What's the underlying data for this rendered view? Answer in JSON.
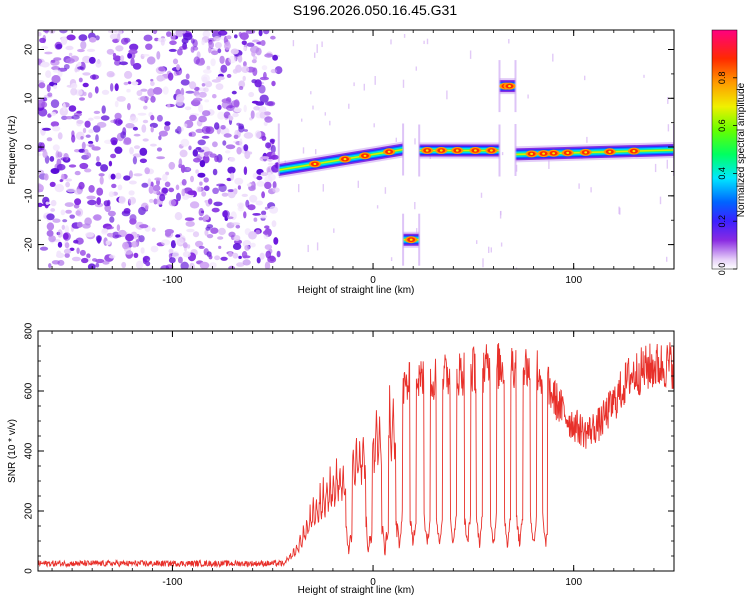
{
  "figure": {
    "title": "S196.2026.050.16.45.G31"
  },
  "chart_data": [
    {
      "type": "heatmap",
      "title": "S196.2026.050.16.45.G31",
      "xlabel": "Height of straight line (km)",
      "ylabel": "Frequency (Hz)",
      "xlim": [
        -167,
        150
      ],
      "ylim": [
        -25,
        24
      ],
      "xticks": [
        -100,
        0,
        100
      ],
      "yticks": [
        -20,
        -10,
        0,
        10,
        20
      ],
      "noise_region_x": [
        -167,
        -47
      ],
      "track": [
        {
          "x": -45,
          "y": -4.7
        },
        {
          "x": -35,
          "y": -3.8
        },
        {
          "x": -25,
          "y": -2.5
        },
        {
          "x": -15,
          "y": -1.6
        },
        {
          "x": -5,
          "y": -1.2
        },
        {
          "x": 5,
          "y": -0.8
        },
        {
          "x": 15,
          "y": -0.5
        }
      ],
      "segments": [
        {
          "x0": -47,
          "x1": 15,
          "y0": -4.7,
          "y1": -0.5,
          "peaks": [
            -29,
            -14,
            -4,
            8
          ]
        },
        {
          "x0": 15,
          "x1": 23,
          "y0": -19,
          "y1": -19,
          "peaks": [
            19
          ]
        },
        {
          "x0": 23,
          "x1": 63,
          "y0": -0.7,
          "y1": -0.7,
          "peaks": [
            27,
            34,
            42,
            51,
            59
          ]
        },
        {
          "x0": 63,
          "x1": 71,
          "y0": 12.5,
          "y1": 12.5,
          "peaks": [
            66,
            68
          ]
        },
        {
          "x0": 71,
          "x1": 150,
          "y0": -1.5,
          "y1": -0.6,
          "peaks": [
            79,
            85,
            90,
            97,
            106,
            118,
            130
          ]
        }
      ],
      "colorbar": {
        "label": "Normalized spectral amplitude",
        "range": [
          0,
          1
        ],
        "ticks": [
          0.0,
          0.2,
          0.4,
          0.6,
          0.8
        ],
        "tick_labels": [
          "0.0",
          "0.2",
          "0.4",
          "0.6",
          "0.8"
        ]
      }
    },
    {
      "type": "line",
      "xlabel": "Height of straight line (km)",
      "ylabel": "SNR (10 * v/v)",
      "xlim": [
        -167,
        150
      ],
      "ylim": [
        0,
        800
      ],
      "xticks": [
        -100,
        0,
        100
      ],
      "yticks": [
        0,
        200,
        400,
        600,
        800
      ],
      "color": "#e8302a",
      "series": [
        {
          "name": "SNR",
          "envelope": [
            {
              "x": -167,
              "y": 25
            },
            {
              "x": -45,
              "y": 25
            },
            {
              "x": -38,
              "y": 90
            },
            {
              "x": -30,
              "y": 230
            },
            {
              "x": -22,
              "y": 330
            },
            {
              "x": -12,
              "y": 420
            },
            {
              "x": -2,
              "y": 500
            },
            {
              "x": 8,
              "y": 580
            },
            {
              "x": 20,
              "y": 630
            },
            {
              "x": 35,
              "y": 650
            },
            {
              "x": 50,
              "y": 670
            },
            {
              "x": 70,
              "y": 690
            },
            {
              "x": 82,
              "y": 670
            },
            {
              "x": 90,
              "y": 580
            },
            {
              "x": 98,
              "y": 500
            },
            {
              "x": 106,
              "y": 460
            },
            {
              "x": 113,
              "y": 490
            },
            {
              "x": 120,
              "y": 560
            },
            {
              "x": 128,
              "y": 650
            },
            {
              "x": 138,
              "y": 680
            },
            {
              "x": 150,
              "y": 690
            }
          ],
          "dips": [
            -12,
            -2,
            6,
            13,
            20,
            27,
            33,
            40,
            47,
            53,
            60,
            67,
            73,
            80,
            86
          ],
          "dip_floor": 90,
          "dip_end_x": 86,
          "noise_amplitude": 10
        }
      ]
    }
  ]
}
